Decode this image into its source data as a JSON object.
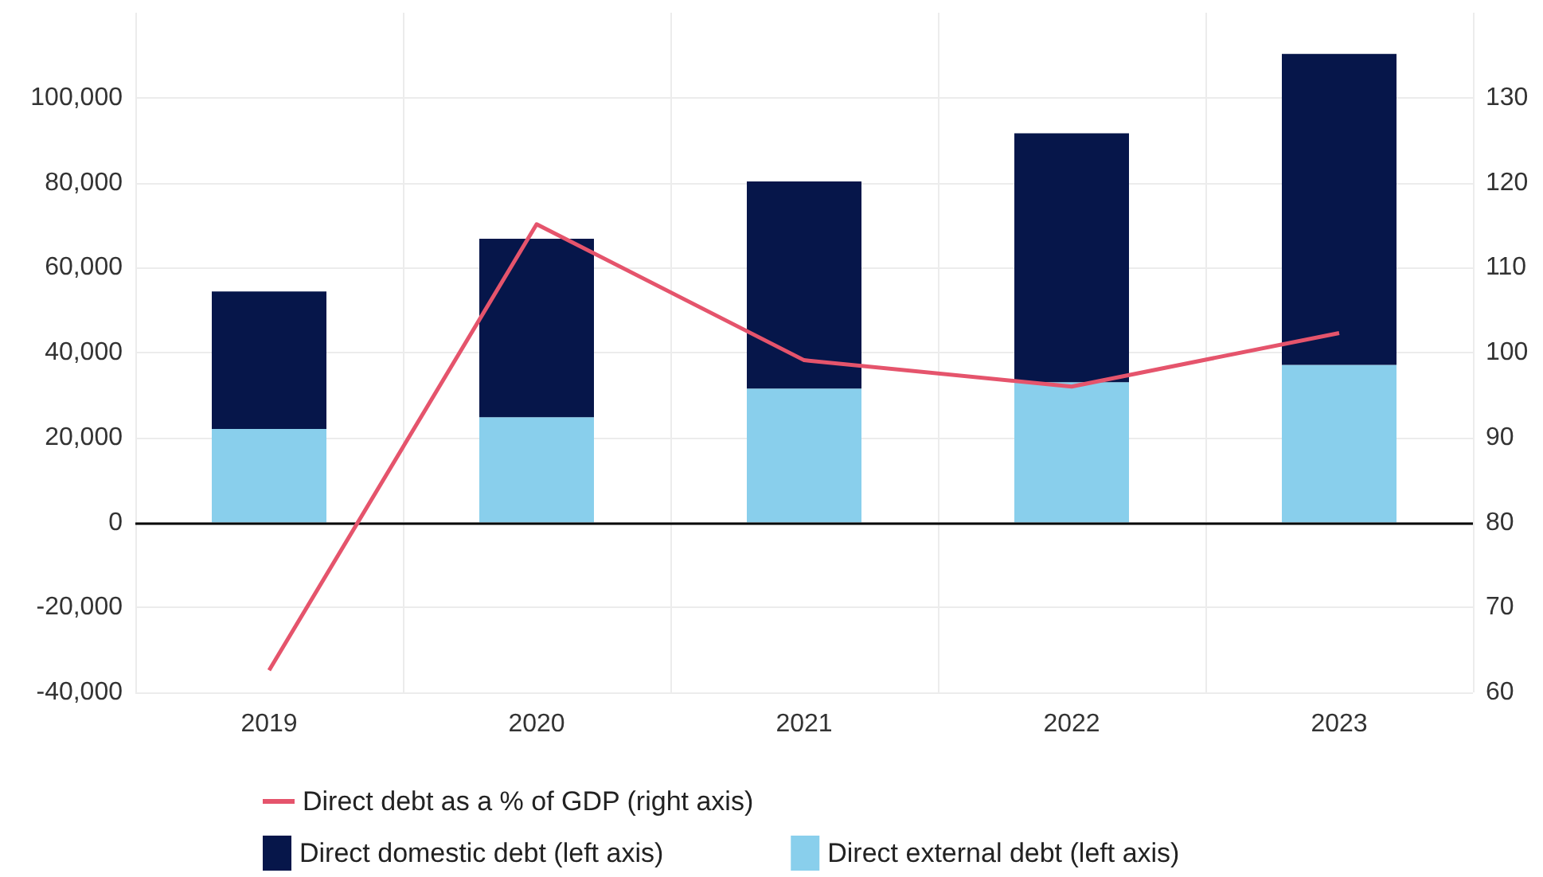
{
  "chart_data": {
    "type": "bar",
    "stacked": true,
    "categories": [
      "2019",
      "2020",
      "2021",
      "2022",
      "2023"
    ],
    "series": [
      {
        "name": "Direct external debt (left axis)",
        "color": "#89cfec",
        "values": [
          22000,
          24800,
          31500,
          33000,
          37100
        ]
      },
      {
        "name": "Direct domestic debt (left axis)",
        "color": "#06164a",
        "values": [
          32400,
          42000,
          48800,
          58600,
          73200
        ]
      },
      {
        "name": "Direct debt as a % of GDP (right axis)",
        "type": "line",
        "axis": "y2",
        "color": "#e5546c",
        "values": [
          62.6,
          115.1,
          99.1,
          96.0,
          102.3
        ]
      }
    ],
    "ylim": [
      -40000,
      120000
    ],
    "yticks": [
      {
        "value": -40000,
        "label": "-40,000"
      },
      {
        "value": -20000,
        "label": "-20,000"
      },
      0,
      {
        "value": 20000,
        "label": "20,000"
      },
      {
        "value": 40000,
        "label": "40,000"
      },
      {
        "value": 60000,
        "label": "60,000"
      },
      {
        "value": 80000,
        "label": "80,000"
      },
      {
        "value": 100000,
        "label": "100,000"
      }
    ],
    "y2lim": [
      60,
      140
    ],
    "y2ticks": [
      60,
      70,
      80,
      90,
      100,
      110,
      120,
      130
    ],
    "grid": true,
    "legend": "bottom",
    "marker": "none",
    "line_style": "solid"
  }
}
